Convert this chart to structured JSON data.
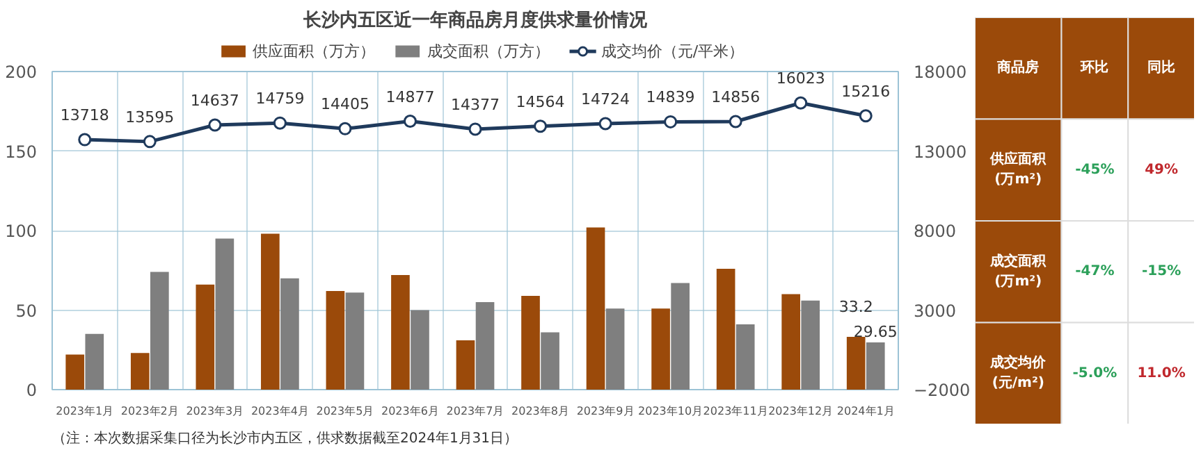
{
  "chart_data": [
    {
      "type": "bar",
      "title": "长沙内五区近一年商品房月度供求量价情况",
      "categories": [
        "2023年1月",
        "2023年2月",
        "2023年3月",
        "2023年4月",
        "2023年5月",
        "2023年6月",
        "2023年7月",
        "2023年8月",
        "2023年9月",
        "2023年10月",
        "2023年11月",
        "2023年12月",
        "2024年1月"
      ],
      "series": [
        {
          "name": "供应面积（万方）",
          "type": "bar",
          "color": "#9b4a0a",
          "values": [
            22,
            23,
            66,
            98,
            62,
            72,
            31,
            59,
            102,
            51,
            76,
            60,
            33.2
          ],
          "value_labels": [
            null,
            null,
            null,
            null,
            null,
            null,
            null,
            null,
            null,
            null,
            null,
            null,
            "33.2"
          ]
        },
        {
          "name": "成交面积（万方）",
          "type": "bar",
          "color": "#7f7f7f",
          "values": [
            35,
            74,
            95,
            70,
            61,
            50,
            55,
            36,
            51,
            67,
            41,
            56,
            29.65
          ],
          "value_labels": [
            null,
            null,
            null,
            null,
            null,
            null,
            null,
            null,
            null,
            null,
            null,
            null,
            "29.65"
          ]
        },
        {
          "name": "成交均价（元/平米）",
          "type": "line",
          "axis": "y2",
          "color": "#1f3a5c",
          "values": [
            13718,
            13595,
            14637,
            14759,
            14405,
            14877,
            14377,
            14564,
            14724,
            14839,
            14856,
            16023,
            15216
          ],
          "value_labels": [
            "13718",
            "13595",
            "14637",
            "14759",
            "14405",
            "14877",
            "14377",
            "14564",
            "14724",
            "14839",
            "14856",
            "16023",
            "15216"
          ]
        }
      ],
      "ylim": [
        0,
        200
      ],
      "yticks": [
        0,
        50,
        100,
        150,
        200
      ],
      "y2lim": [
        -2000,
        18000
      ],
      "y2ticks": [
        -2000,
        3000,
        8000,
        13000,
        18000
      ],
      "grid": true,
      "legend": "top",
      "marker": "circle",
      "line_style": "solid",
      "annotations": [
        "（注：本次数据采集口径为长沙市内五区，供求数据截至2024年1月31日）"
      ]
    },
    {
      "type": "other",
      "color": "#9b4a0a",
      "categories": [
        "商品房",
        "环比",
        "同比"
      ],
      "y_categories": [
        "供应面积\n(万m²)",
        "成交面积\n(万m²)",
        "成交均价\n(元/m²)"
      ],
      "cell_labels": [
        [
          "-45%",
          "49%"
        ],
        [
          "-47%",
          "-15%"
        ],
        [
          "-5.0%",
          "11.0%"
        ]
      ],
      "colors": [
        [
          "#2ca05a",
          "#c0282d"
        ],
        [
          "#2ca05a",
          "#2ca05a"
        ],
        [
          "#2ca05a",
          "#c0282d"
        ]
      ]
    }
  ]
}
